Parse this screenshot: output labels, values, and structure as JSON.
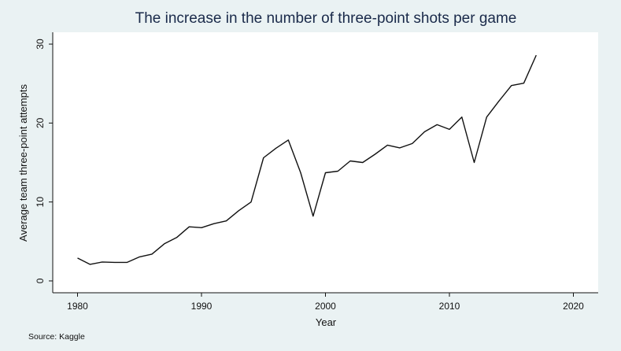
{
  "chart_data": {
    "type": "line",
    "title": "The increase in the number of three-point shots per game",
    "xlabel": "Year",
    "ylabel": "Average team three-point attempts",
    "note": "Source: Kaggle",
    "xlim": [
      1978,
      2022
    ],
    "ylim": [
      -1.5,
      31.5
    ],
    "xticks": [
      1980,
      1990,
      2000,
      2010,
      2020
    ],
    "yticks": [
      0,
      10,
      20,
      30
    ],
    "grid": false,
    "legend": "none",
    "colors": {
      "page_background": "#eaf2f3",
      "plot_background": "#ffffff",
      "line": "#111111",
      "title": "#1a2a4a"
    },
    "series": [
      {
        "x": [
          1980,
          1981,
          1982,
          1983,
          1984,
          1985,
          1986,
          1987,
          1988,
          1989,
          1990,
          1991,
          1992,
          1993,
          1994,
          1995,
          1996,
          1997,
          1998,
          1999,
          2000,
          2001,
          2002,
          2003,
          2004,
          2005,
          2006,
          2007,
          2008,
          2009,
          2010,
          2011,
          2012,
          2013,
          2014,
          2015,
          2016,
          2017
        ],
        "values": [
          2.9,
          2.1,
          2.4,
          2.35,
          2.35,
          3.05,
          3.4,
          4.7,
          5.5,
          6.85,
          6.75,
          7.25,
          7.6,
          8.9,
          10.0,
          15.6,
          16.8,
          17.85,
          13.7,
          8.2,
          13.7,
          13.9,
          15.2,
          15.0,
          16.05,
          17.2,
          16.85,
          17.4,
          18.9,
          19.8,
          19.2,
          20.75,
          15.0,
          20.75,
          22.8,
          24.75,
          25.05,
          28.6
        ]
      }
    ]
  }
}
